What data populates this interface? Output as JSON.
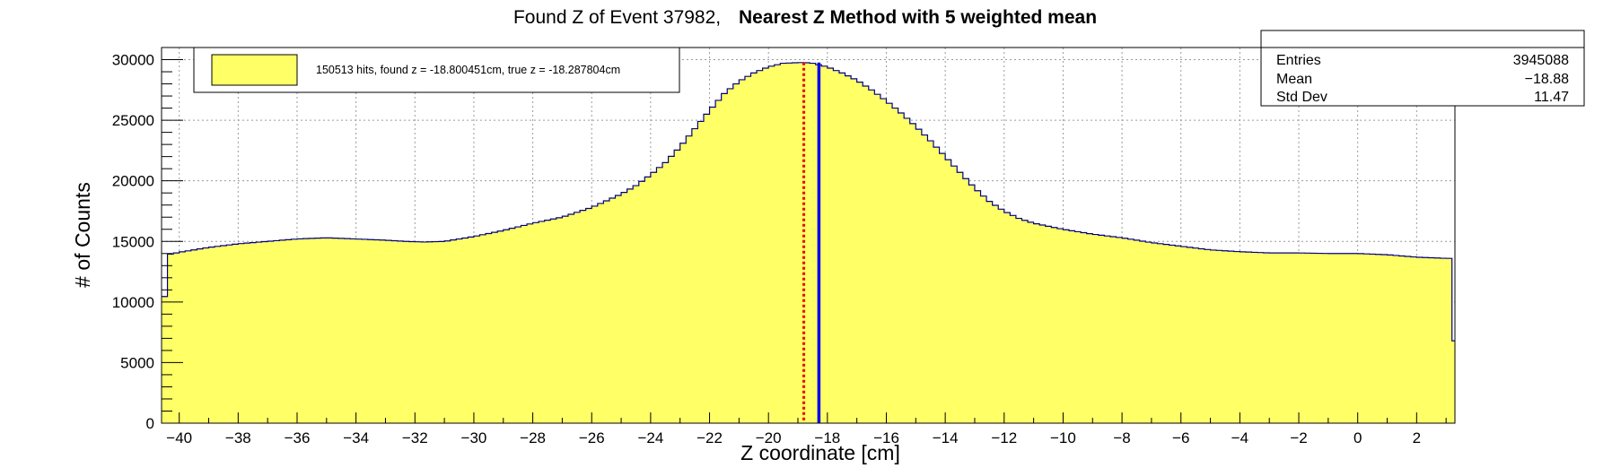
{
  "chart_data": {
    "type": "histogram",
    "title_prefix": "Found Z of Event 37982,",
    "title_bold": "Nearest Z Method with 5 weighted mean",
    "xlabel": "Z coordinate [cm]",
    "ylabel": "# of Counts",
    "xlim": [
      -40.6,
      3.3
    ],
    "ylim": [
      0,
      31000
    ],
    "x_ticks": [
      -40,
      -38,
      -36,
      -34,
      -32,
      -30,
      -28,
      -26,
      -24,
      -22,
      -20,
      -18,
      -16,
      -14,
      -12,
      -10,
      -8,
      -6,
      -4,
      -2,
      0,
      2
    ],
    "y_ticks": [
      0,
      5000,
      10000,
      15000,
      20000,
      25000,
      30000
    ],
    "x_tick_labels": [
      "−40",
      "−38",
      "−36",
      "−34",
      "−32",
      "−30",
      "−28",
      "−26",
      "−24",
      "−22",
      "−20",
      "−18",
      "−16",
      "−14",
      "−12",
      "−10",
      "−8",
      "−6",
      "−4",
      "−2",
      "0",
      "2"
    ],
    "y_tick_labels": [
      "0",
      "5000",
      "10000",
      "15000",
      "20000",
      "25000",
      "30000"
    ],
    "grid": true,
    "fill_color": "#ffff66",
    "line_color": "#000080",
    "bin_width": 0.2,
    "envelope": {
      "z": [
        -40.6,
        -40.4,
        -40,
        -39,
        -38,
        -37,
        -36,
        -35,
        -34,
        -33,
        -32.3,
        -31.7,
        -31,
        -30,
        -29,
        -28,
        -27,
        -26,
        -25,
        -24.5,
        -24,
        -23.5,
        -23,
        -22.5,
        -22,
        -21.5,
        -21,
        -20.5,
        -20,
        -19.5,
        -19,
        -18.8,
        -18.5,
        -18,
        -17.5,
        -17,
        -16.5,
        -16,
        -15.5,
        -15,
        -14.5,
        -14,
        -13.5,
        -13,
        -12.5,
        -12,
        -11.5,
        -11,
        -10,
        -9,
        -8,
        -7,
        -6,
        -5,
        -4,
        -3,
        -2,
        -1,
        0,
        1,
        2,
        3,
        3.1,
        3.3
      ],
      "counts": [
        7000,
        13900,
        14100,
        14500,
        14800,
        15000,
        15200,
        15300,
        15200,
        15100,
        15000,
        14950,
        15000,
        15400,
        15900,
        16500,
        17000,
        17800,
        18900,
        19600,
        20500,
        21500,
        22800,
        24300,
        25800,
        27200,
        28200,
        28900,
        29400,
        29700,
        29750,
        29760,
        29700,
        29400,
        28900,
        28300,
        27500,
        26600,
        25600,
        24500,
        23300,
        22000,
        20700,
        19400,
        18300,
        17500,
        16900,
        16500,
        16000,
        15600,
        15300,
        14900,
        14600,
        14300,
        14150,
        14050,
        14050,
        14000,
        14000,
        13900,
        13700,
        13600,
        13600,
        6800
      ]
    },
    "markers": [
      {
        "name": "found z",
        "z": -18.800451,
        "color": "#ee0000",
        "style": "dotted"
      },
      {
        "name": "true z",
        "z": -18.287804,
        "color": "#0000ee",
        "style": "solid"
      }
    ],
    "legend": {
      "text": "150513 hits, found z = -18.800451cm, true z = -18.287804cm",
      "position": "top-left",
      "swatch_color": "#ffff66"
    },
    "stats": {
      "position": "top-right",
      "rows": [
        {
          "label": "Entries",
          "value": "3945088"
        },
        {
          "label": "Mean",
          "value": "−18.88"
        },
        {
          "label": "Std Dev",
          "value": "11.47"
        }
      ]
    }
  }
}
